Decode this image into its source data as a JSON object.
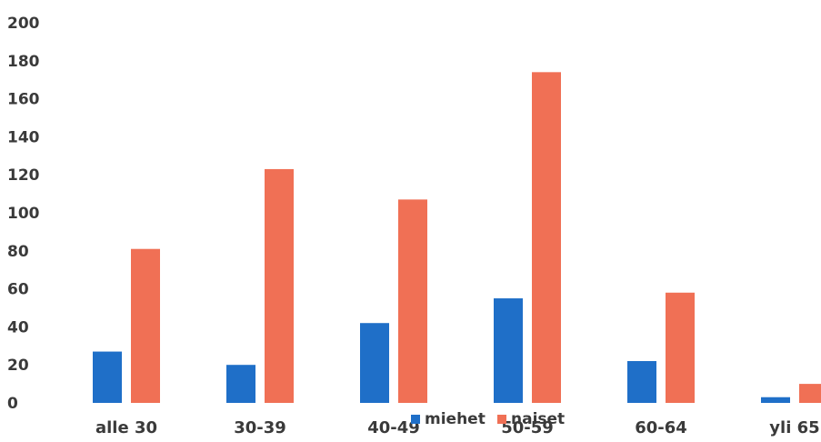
{
  "chart_data": {
    "type": "bar",
    "title": "",
    "xlabel": "",
    "ylabel": "",
    "categories": [
      "alle 30",
      "30-39",
      "40-49",
      "50-59",
      "60-64",
      "yli 65"
    ],
    "series": [
      {
        "name": "miehet",
        "color": "#1f6fc8",
        "values": [
          27,
          20,
          42,
          55,
          22,
          3
        ]
      },
      {
        "name": "naiset",
        "color": "#f07055",
        "values": [
          81,
          123,
          107,
          174,
          58,
          10
        ]
      }
    ],
    "ylim": [
      0,
      200
    ],
    "yticks": [
      "0",
      "20",
      "40",
      "60",
      "80",
      "100",
      "120",
      "140",
      "160",
      "180",
      "200"
    ],
    "grid": false,
    "legend_position": "bottom"
  }
}
